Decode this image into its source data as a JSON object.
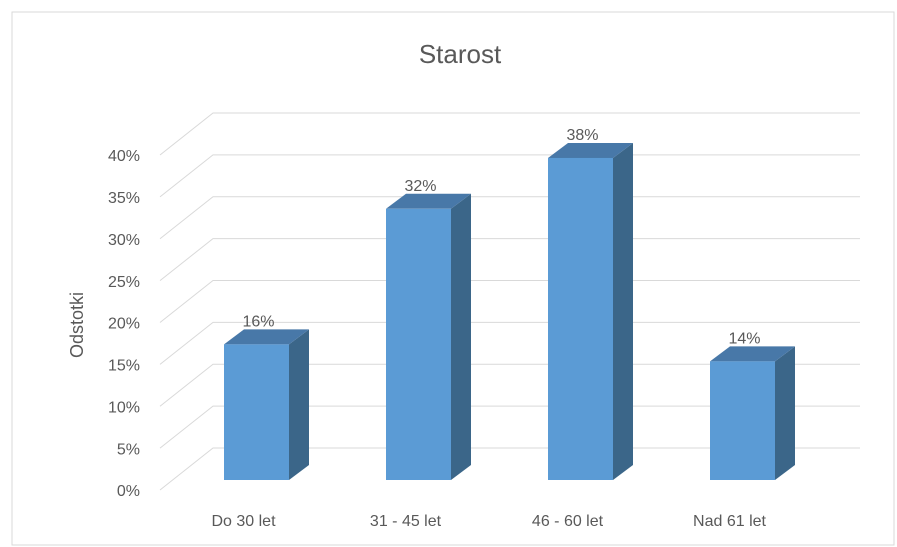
{
  "chart_data": {
    "type": "bar3d",
    "title": "Starost",
    "y_label": "Odstotki",
    "categories": [
      "Do 30 let",
      "31 - 45 let",
      "46 - 60 let",
      "Nad 61 let"
    ],
    "values": [
      16,
      32,
      38,
      14
    ],
    "value_labels": [
      "16%",
      "32%",
      "38%",
      "14%"
    ],
    "color": "#5b9bd5",
    "ylim": [
      0,
      40
    ],
    "yticks": [
      {
        "value": 0,
        "label": "0%"
      },
      {
        "value": 5,
        "label": "5%"
      },
      {
        "value": 10,
        "label": "10%"
      },
      {
        "value": 15,
        "label": "15%"
      },
      {
        "value": 20,
        "label": "20%"
      },
      {
        "value": 25,
        "label": "25%"
      },
      {
        "value": 30,
        "label": "30%"
      },
      {
        "value": 35,
        "label": "35%"
      },
      {
        "value": 40,
        "label": "40%"
      }
    ],
    "grid": true
  }
}
